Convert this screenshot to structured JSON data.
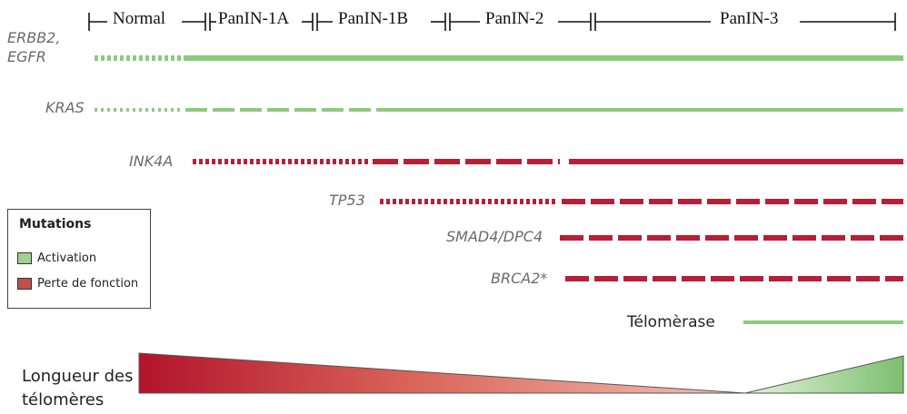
{
  "stages": [
    "Normal",
    "PanIN-1A",
    "PanIN-1B",
    "PanIN-2",
    "PanIN-3"
  ],
  "genes": {
    "erbb2_line1": "ERBB2,",
    "erbb2_line2": "EGFR",
    "kras": "KRAS",
    "ink4a": "INK4A",
    "tp53": "TP53",
    "smad4": "SMAD4/DPC4",
    "brca2": "BRCA2*",
    "telomerase": "Télomèrase"
  },
  "legend": {
    "title": "Mutations",
    "activation": "Activation",
    "loss": "Perte de fonction"
  },
  "telomere_label_line1": "Longueur des",
  "telomere_label_line2": "télomères",
  "colors": {
    "activation": "#8dcb7c",
    "loss": "#b81e36",
    "gradient_red": "#b2142b",
    "gradient_pink": "#f3c1b6",
    "gradient_green": "#7dbf6f"
  }
}
